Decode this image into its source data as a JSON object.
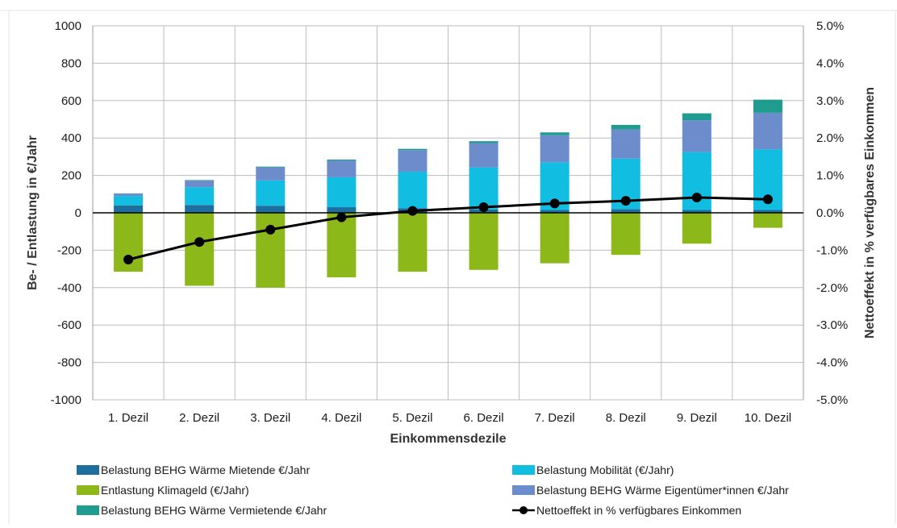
{
  "chart_data": {
    "type": "bar",
    "stacked": true,
    "categories": [
      "1. Dezil",
      "2. Dezil",
      "3. Dezil",
      "4. Dezil",
      "5. Dezil",
      "6. Dezil",
      "7. Dezil",
      "8. Dezil",
      "9. Dezil",
      "10. Dezil"
    ],
    "xlabel": "Einkommensdezile",
    "ylabel_left": "Be- / Entlastung in €/Jahr",
    "ylabel_right": "Nettoeffekt in % verfügbares Einkommen",
    "ylim_left": [
      -1000,
      1000
    ],
    "ylim_right": [
      -5.0,
      5.0
    ],
    "yticks_left": [
      "1000",
      "800",
      "600",
      "400",
      "200",
      "0",
      "-200",
      "-400",
      "-600",
      "-800",
      "-1000"
    ],
    "yticks_right": [
      "5.0%",
      "4.0%",
      "3.0%",
      "2.0%",
      "1.0%",
      "0.0%",
      "-1.0%",
      "-2.0%",
      "-3.0%",
      "-4.0%",
      "-5.0%"
    ],
    "grid": true,
    "legend_position": "bottom",
    "series": [
      {
        "name": "Belastung BEHG Wärme Mietende €/Jahr",
        "color": "#1f6f9e",
        "values": [
          40,
          42,
          38,
          30,
          25,
          18,
          15,
          20,
          15,
          15
        ]
      },
      {
        "name": "Belastung Mobilität (€/Jahr)",
        "color": "#12bde2",
        "values": [
          50,
          95,
          135,
          160,
          195,
          225,
          255,
          270,
          310,
          325
        ]
      },
      {
        "name": "Entlastung Klimageld (€/Jahr)",
        "color": "#8db819",
        "values": [
          -315,
          -390,
          -400,
          -345,
          -315,
          -305,
          -270,
          -225,
          -165,
          -80
        ]
      },
      {
        "name": "Belastung BEHG Wärme Eigentümer*innen €/Jahr",
        "color": "#6d8ccb",
        "values": [
          12,
          35,
          70,
          90,
          115,
          130,
          145,
          155,
          170,
          195
        ]
      },
      {
        "name": "Belastung BEHG Wärme Vermietende €/Jahr",
        "color": "#1f9b8f",
        "values": [
          2,
          3,
          4,
          5,
          7,
          10,
          15,
          25,
          37,
          70
        ]
      },
      {
        "name": "Nettoeffekt in % verfügbares Einkommen",
        "type": "line",
        "axis": "right",
        "color": "#000000",
        "values": [
          -1.25,
          -0.78,
          -0.45,
          -0.12,
          0.05,
          0.15,
          0.25,
          0.32,
          0.41,
          0.36
        ]
      }
    ]
  }
}
